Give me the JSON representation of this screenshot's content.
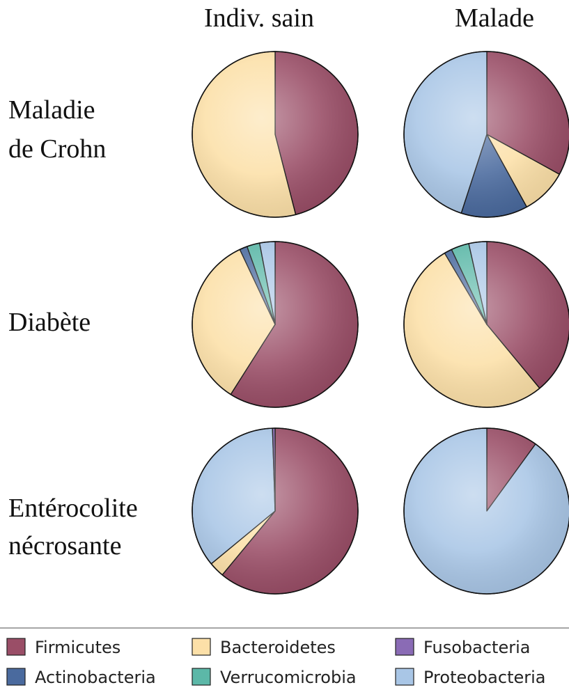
{
  "chart_data": {
    "type": "pie",
    "column_headers": [
      "Indiv. sain",
      "Malade"
    ],
    "row_labels": [
      [
        "Maladie",
        "de Crohn"
      ],
      [
        "Diabète"
      ],
      [
        "Entérocolite",
        "nécrosante"
      ]
    ],
    "categories": [
      "Firmicutes",
      "Bacteroidetes",
      "Fusobacteria",
      "Actinobacteria",
      "Verrucomicrobia",
      "Proteobacteria"
    ],
    "colors": {
      "Firmicutes": "#9a4e67",
      "Bacteroidetes": "#fce0a8",
      "Fusobacteria": "#8a6bb5",
      "Actinobacteria": "#4a6a9e",
      "Verrucomicrobia": "#5cb8a8",
      "Proteobacteria": "#a9c6e6"
    },
    "legend": {
      "placement": "bottom",
      "items": [
        "Firmicutes",
        "Bacteroidetes",
        "Fusobacteria",
        "Actinobacteria",
        "Verrucomicrobia",
        "Proteobacteria"
      ]
    },
    "pies": [
      {
        "row": "Maladie de Crohn",
        "column": "Indiv. sain",
        "slices": [
          {
            "category": "Firmicutes",
            "value": 46
          },
          {
            "category": "Bacteroidetes",
            "value": 54
          }
        ]
      },
      {
        "row": "Maladie de Crohn",
        "column": "Malade",
        "slices": [
          {
            "category": "Firmicutes",
            "value": 33
          },
          {
            "category": "Bacteroidetes",
            "value": 9
          },
          {
            "category": "Actinobacteria",
            "value": 13
          },
          {
            "category": "Proteobacteria",
            "value": 45
          }
        ]
      },
      {
        "row": "Diabète",
        "column": "Indiv. sain",
        "slices": [
          {
            "category": "Firmicutes",
            "value": 59
          },
          {
            "category": "Bacteroidetes",
            "value": 34
          },
          {
            "category": "Actinobacteria",
            "value": 1.5
          },
          {
            "category": "Verrucomicrobia",
            "value": 2.5
          },
          {
            "category": "Proteobacteria",
            "value": 3
          }
        ]
      },
      {
        "row": "Diabète",
        "column": "Malade",
        "slices": [
          {
            "category": "Firmicutes",
            "value": 39
          },
          {
            "category": "Bacteroidetes",
            "value": 52.5
          },
          {
            "category": "Actinobacteria",
            "value": 1.5
          },
          {
            "category": "Verrucomicrobia",
            "value": 3.5
          },
          {
            "category": "Proteobacteria",
            "value": 3.5
          }
        ]
      },
      {
        "row": "Entérocolite nécrosante",
        "column": "Indiv. sain",
        "slices": [
          {
            "category": "Firmicutes",
            "value": 61
          },
          {
            "category": "Bacteroidetes",
            "value": 3
          },
          {
            "category": "Proteobacteria",
            "value": 35.5
          },
          {
            "category": "Fusobacteria",
            "value": 0.5
          }
        ]
      },
      {
        "row": "Entérocolite nécrosante",
        "column": "Malade",
        "slices": [
          {
            "category": "Firmicutes",
            "value": 10
          },
          {
            "category": "Proteobacteria",
            "value": 90
          }
        ]
      }
    ]
  }
}
